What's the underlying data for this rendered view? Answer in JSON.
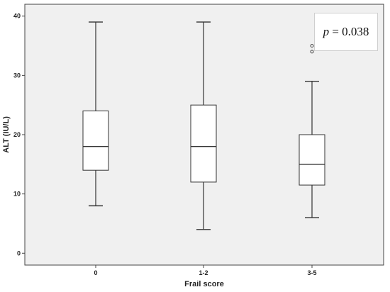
{
  "chart_data": {
    "type": "box",
    "xlabel": "Frail score",
    "ylabel": "ALT (IU/L)",
    "categories": [
      "0",
      "1-2",
      "3-5"
    ],
    "boxes": [
      {
        "category": "0",
        "min": 8,
        "q1": 14,
        "median": 18,
        "q3": 24,
        "max": 39,
        "outliers": []
      },
      {
        "category": "1-2",
        "min": 4,
        "q1": 12,
        "median": 18,
        "q3": 25,
        "max": 39,
        "outliers": []
      },
      {
        "category": "3-5",
        "min": 6,
        "q1": 11.5,
        "median": 15,
        "q3": 20,
        "max": 29,
        "outliers": [
          34,
          35
        ]
      }
    ],
    "ylim": [
      -2,
      42
    ],
    "yticks": [
      "0",
      "10",
      "20",
      "30",
      "40"
    ],
    "grid": false,
    "annotation": {
      "variable": "p",
      "text": " = 0.038"
    },
    "colors": {
      "plot_background": "#f0f0f0",
      "box_fill": "#ffffff",
      "stroke": "#333333"
    }
  }
}
